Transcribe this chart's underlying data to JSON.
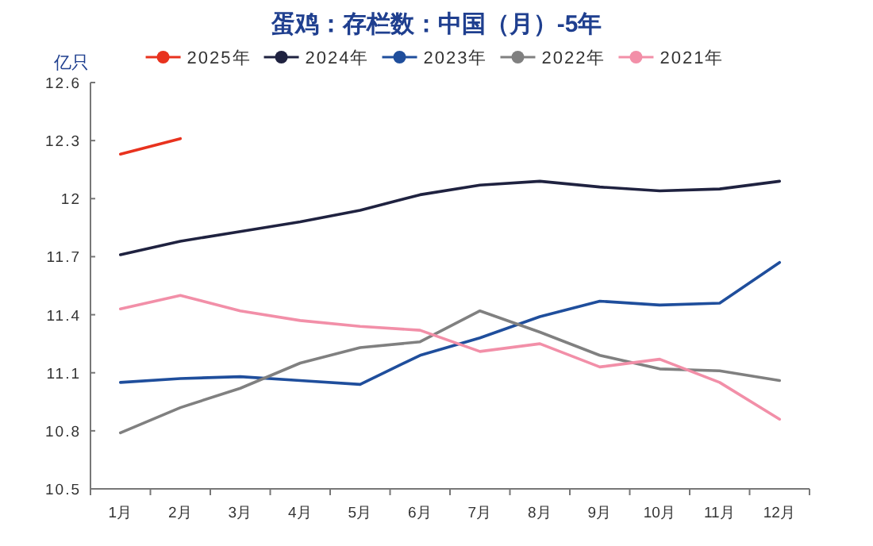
{
  "chart_data": {
    "type": "line",
    "title": "蛋鸡：存栏数：中国（月）-5年",
    "ylabel": "亿只",
    "categories": [
      "1月",
      "2月",
      "3月",
      "4月",
      "5月",
      "6月",
      "7月",
      "8月",
      "9月",
      "10月",
      "11月",
      "12月"
    ],
    "series": [
      {
        "name": "2025年",
        "color": "#e8321e",
        "values": [
          12.23,
          12.31,
          null,
          null,
          null,
          null,
          null,
          null,
          null,
          null,
          null,
          null
        ]
      },
      {
        "name": "2024年",
        "color": "#1f2240",
        "values": [
          11.71,
          11.78,
          11.83,
          11.88,
          11.94,
          12.02,
          12.07,
          12.09,
          12.06,
          12.04,
          12.05,
          12.09
        ]
      },
      {
        "name": "2023年",
        "color": "#1f4e9c",
        "values": [
          11.05,
          11.07,
          11.08,
          11.06,
          11.04,
          11.19,
          11.28,
          11.39,
          11.47,
          11.45,
          11.46,
          11.67
        ]
      },
      {
        "name": "2022年",
        "color": "#808080",
        "values": [
          10.79,
          10.92,
          11.02,
          11.15,
          11.23,
          11.26,
          11.42,
          11.31,
          11.19,
          11.12,
          11.11,
          11.06
        ]
      },
      {
        "name": "2021年",
        "color": "#f28fa8",
        "values": [
          11.43,
          11.5,
          11.42,
          11.37,
          11.34,
          11.32,
          11.21,
          11.25,
          11.13,
          11.17,
          11.05,
          10.86
        ]
      }
    ],
    "ylim": [
      10.5,
      12.6
    ],
    "yticks": [
      10.5,
      10.8,
      11.1,
      11.4,
      11.7,
      12,
      12.3,
      12.6
    ],
    "legend": "top",
    "grid": false,
    "line_style": "solid"
  }
}
